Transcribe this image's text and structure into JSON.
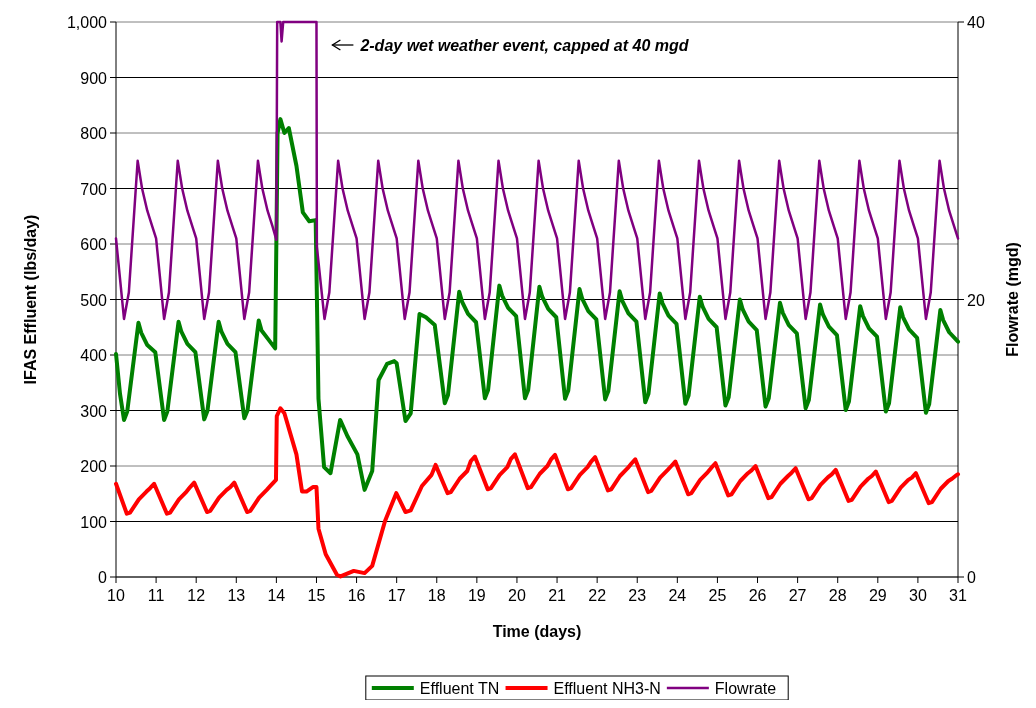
{
  "chart_data": {
    "type": "line",
    "xlabel": "Time (days)",
    "ylabel": "IFAS Effluent (lbs/day)",
    "y2label": "Flowrate (mgd)",
    "xlim": [
      10,
      31
    ],
    "xticks": [
      10,
      11,
      12,
      13,
      14,
      15,
      16,
      17,
      18,
      19,
      20,
      21,
      22,
      23,
      24,
      25,
      26,
      27,
      28,
      29,
      30,
      31
    ],
    "ylim": [
      0,
      1000
    ],
    "yticks": [
      0,
      100,
      200,
      300,
      400,
      500,
      600,
      700,
      800,
      900,
      {
        "value": 1000,
        "label": "1,000"
      }
    ],
    "y2lim": [
      0,
      40
    ],
    "y2ticks": [
      0,
      20,
      40
    ],
    "grid": "y",
    "legend": "bottom",
    "marker": "none",
    "line_style": "solid",
    "annotations": [
      "2-day wet weather event, capped at 40 mgd"
    ],
    "series": [
      {
        "name": "Effluent TN",
        "color": "#008000",
        "x": [
          10,
          10.1,
          10.2,
          10.28,
          10.56,
          10.63,
          10.78,
          10.98,
          11.2,
          11.28,
          11.56,
          11.63,
          11.78,
          11.98,
          12.2,
          12.28,
          12.56,
          12.63,
          12.78,
          12.98,
          13.2,
          13.28,
          13.56,
          13.63,
          13.78,
          13.97,
          14.03,
          14.1,
          14.2,
          14.31,
          14.5,
          14.66,
          14.82,
          14.98,
          15.05,
          15.19,
          15.35,
          15.59,
          15.77,
          16.02,
          16.2,
          16.39,
          16.55,
          16.76,
          16.94,
          17,
          17.22,
          17.35,
          17.57,
          17.73,
          17.95,
          18.2,
          18.28,
          18.56,
          18.63,
          18.78,
          18.98,
          19.2,
          19.28,
          19.56,
          19.63,
          19.78,
          19.98,
          20.2,
          20.28,
          20.56,
          20.63,
          20.78,
          20.98,
          21.2,
          21.28,
          21.56,
          21.63,
          21.78,
          21.98,
          22.2,
          22.28,
          22.56,
          22.63,
          22.78,
          22.98,
          23.2,
          23.28,
          23.56,
          23.63,
          23.78,
          23.98,
          24.2,
          24.28,
          24.56,
          24.63,
          24.78,
          24.98,
          25.2,
          25.28,
          25.56,
          25.63,
          25.78,
          25.98,
          26.2,
          26.28,
          26.56,
          26.63,
          26.78,
          26.98,
          27.2,
          27.28,
          27.56,
          27.63,
          27.78,
          27.98,
          28.2,
          28.28,
          28.56,
          28.63,
          28.78,
          28.98,
          29.2,
          29.28,
          29.56,
          29.63,
          29.78,
          29.98,
          30.2,
          30.28,
          30.56,
          30.63,
          30.78,
          31
        ],
        "values": [
          402,
          330,
          283,
          298,
          458,
          440,
          418,
          405,
          283,
          298,
          460,
          442,
          420,
          405,
          284,
          299,
          460,
          442,
          420,
          405,
          286,
          300,
          462,
          444,
          430,
          412,
          800,
          825,
          800,
          809,
          741,
          657,
          641,
          643,
          321,
          198,
          187,
          283,
          254,
          221,
          157,
          191,
          355,
          384,
          389,
          385,
          281,
          295,
          474,
          468,
          454,
          313,
          328,
          514,
          496,
          474,
          459,
          322,
          337,
          525,
          507,
          485,
          470,
          322,
          337,
          523,
          505,
          483,
          468,
          321,
          336,
          519,
          501,
          479,
          464,
          320,
          335,
          515,
          497,
          475,
          460,
          315,
          330,
          511,
          493,
          471,
          456,
          312,
          327,
          505,
          487,
          465,
          450,
          309,
          324,
          500,
          482,
          460,
          445,
          307,
          322,
          494,
          476,
          454,
          439,
          304,
          319,
          491,
          473,
          451,
          436,
          301,
          316,
          488,
          470,
          448,
          433,
          298,
          313,
          486,
          468,
          446,
          431,
          296,
          311,
          481,
          463,
          441,
          424
        ]
      },
      {
        "name": "Effluent NH3-N",
        "color": "#ff0000",
        "x": [
          10,
          10.27,
          10.35,
          10.57,
          10.76,
          10.85,
          10.95,
          11.27,
          11.35,
          11.57,
          11.76,
          11.85,
          11.95,
          12.27,
          12.35,
          12.57,
          12.76,
          12.85,
          12.95,
          13.27,
          13.35,
          13.57,
          13.76,
          13.85,
          13.95,
          13.99,
          14.01,
          14.1,
          14.2,
          14.5,
          14.64,
          14.75,
          14.91,
          15,
          15.05,
          15.23,
          15.51,
          15.6,
          15.93,
          16.2,
          16.39,
          16.71,
          16.99,
          17.22,
          17.35,
          17.63,
          17.87,
          17.97,
          18.27,
          18.35,
          18.57,
          18.76,
          18.85,
          18.95,
          19.27,
          19.35,
          19.57,
          19.76,
          19.85,
          19.95,
          20.27,
          20.35,
          20.57,
          20.76,
          20.85,
          20.95,
          21.27,
          21.35,
          21.57,
          21.76,
          21.85,
          21.95,
          22.27,
          22.35,
          22.57,
          22.76,
          22.85,
          22.95,
          23.27,
          23.35,
          23.57,
          23.76,
          23.85,
          23.95,
          24.27,
          24.35,
          24.57,
          24.76,
          24.85,
          24.95,
          25.27,
          25.35,
          25.57,
          25.76,
          25.85,
          25.95,
          26.27,
          26.35,
          26.57,
          26.76,
          26.85,
          26.95,
          27.27,
          27.35,
          27.57,
          27.76,
          27.85,
          27.95,
          28.27,
          28.35,
          28.57,
          28.76,
          28.85,
          28.95,
          29.27,
          29.35,
          29.57,
          29.76,
          29.85,
          29.95,
          30.27,
          30.35,
          30.57,
          30.76,
          30.85,
          30.95,
          31
        ],
        "values": [
          168,
          114,
          116,
          140,
          154,
          160,
          168,
          114,
          116,
          140,
          154,
          162,
          170,
          117,
          119,
          143,
          157,
          162,
          170,
          117,
          119,
          143,
          157,
          164,
          172,
          175,
          290,
          304,
          295,
          221,
          154,
          154,
          162,
          162,
          87,
          41,
          4,
          1,
          11,
          7,
          20,
          101,
          151,
          117,
          120,
          164,
          184,
          202,
          151,
          153,
          177,
          191,
          209,
          217,
          158,
          160,
          184,
          198,
          213,
          221,
          160,
          162,
          186,
          200,
          212,
          220,
          158,
          160,
          184,
          198,
          208,
          216,
          156,
          158,
          182,
          196,
          204,
          212,
          153,
          155,
          179,
          193,
          200,
          208,
          149,
          151,
          175,
          189,
          197,
          205,
          147,
          149,
          173,
          187,
          192,
          200,
          142,
          144,
          168,
          182,
          188,
          196,
          140,
          142,
          166,
          180,
          185,
          193,
          137,
          139,
          163,
          177,
          182,
          190,
          135,
          137,
          161,
          175,
          179,
          187,
          133,
          135,
          159,
          173,
          177,
          183,
          185
        ]
      },
      {
        "name": "Flowrate",
        "color": "#800080",
        "axis": "y2",
        "x": [
          10,
          10.2,
          10.32,
          10.54,
          10.65,
          10.78,
          10.9,
          11,
          11.2,
          11.32,
          11.54,
          11.65,
          11.78,
          11.9,
          12,
          12.2,
          12.32,
          12.54,
          12.65,
          12.78,
          12.9,
          13,
          13.2,
          13.32,
          13.54,
          13.65,
          13.78,
          13.9,
          14,
          14.02,
          14.1,
          14.13,
          14.17,
          15,
          15.01,
          15.2,
          15.32,
          15.54,
          15.65,
          15.78,
          15.9,
          16,
          16.2,
          16.32,
          16.54,
          16.65,
          16.78,
          16.9,
          17,
          17.2,
          17.32,
          17.54,
          17.65,
          17.78,
          17.9,
          18,
          18.2,
          18.32,
          18.54,
          18.65,
          18.78,
          18.9,
          19,
          19.2,
          19.32,
          19.54,
          19.65,
          19.78,
          19.9,
          20,
          20.2,
          20.32,
          20.54,
          20.65,
          20.78,
          20.9,
          21,
          21.2,
          21.32,
          21.54,
          21.65,
          21.78,
          21.9,
          22,
          22.2,
          22.32,
          22.54,
          22.65,
          22.78,
          22.9,
          23,
          23.2,
          23.32,
          23.54,
          23.65,
          23.78,
          23.9,
          24,
          24.2,
          24.32,
          24.54,
          24.65,
          24.78,
          24.9,
          25,
          25.2,
          25.32,
          25.54,
          25.65,
          25.78,
          25.9,
          26,
          26.2,
          26.32,
          26.54,
          26.65,
          26.78,
          26.9,
          27,
          27.2,
          27.32,
          27.54,
          27.65,
          27.78,
          27.9,
          28,
          28.2,
          28.32,
          28.54,
          28.65,
          28.78,
          28.9,
          29,
          29.2,
          29.32,
          29.54,
          29.65,
          29.78,
          29.9,
          30,
          30.2,
          30.32,
          30.54,
          30.65,
          30.78,
          30.9,
          31
        ],
        "values": [
          24.4,
          18.6,
          20.5,
          30,
          28,
          26.4,
          25.3,
          24.4,
          18.6,
          20.5,
          30,
          28,
          26.4,
          25.3,
          24.4,
          18.6,
          20.5,
          30,
          28,
          26.4,
          25.3,
          24.4,
          18.6,
          20.5,
          30,
          28,
          26.4,
          25.3,
          24.3,
          40,
          40,
          38.6,
          40,
          40,
          23.8,
          18.6,
          20.5,
          30,
          28,
          26.4,
          25.3,
          24.4,
          18.6,
          20.5,
          30,
          28,
          26.4,
          25.3,
          24.4,
          18.6,
          20.5,
          30,
          28,
          26.4,
          25.3,
          24.4,
          18.6,
          20.5,
          30,
          28,
          26.4,
          25.3,
          24.4,
          18.6,
          20.5,
          30,
          28,
          26.4,
          25.3,
          24.4,
          18.6,
          20.5,
          30,
          28,
          26.4,
          25.3,
          24.4,
          18.6,
          20.5,
          30,
          28,
          26.4,
          25.3,
          24.4,
          18.6,
          20.5,
          30,
          28,
          26.4,
          25.3,
          24.4,
          18.6,
          20.5,
          30,
          28,
          26.4,
          25.3,
          24.4,
          18.6,
          20.5,
          30,
          28,
          26.4,
          25.3,
          24.4,
          18.6,
          20.5,
          30,
          28,
          26.4,
          25.3,
          24.4,
          18.6,
          20.5,
          30,
          28,
          26.4,
          25.3,
          24.4,
          18.6,
          20.5,
          30,
          28,
          26.4,
          25.3,
          24.4,
          18.6,
          20.5,
          30,
          28,
          26.4,
          25.3,
          24.4,
          18.6,
          20.5,
          30,
          28,
          26.4,
          25.3,
          24.4,
          18.6,
          20.5,
          30,
          28,
          26.4,
          25.3,
          24.4
        ]
      }
    ]
  }
}
